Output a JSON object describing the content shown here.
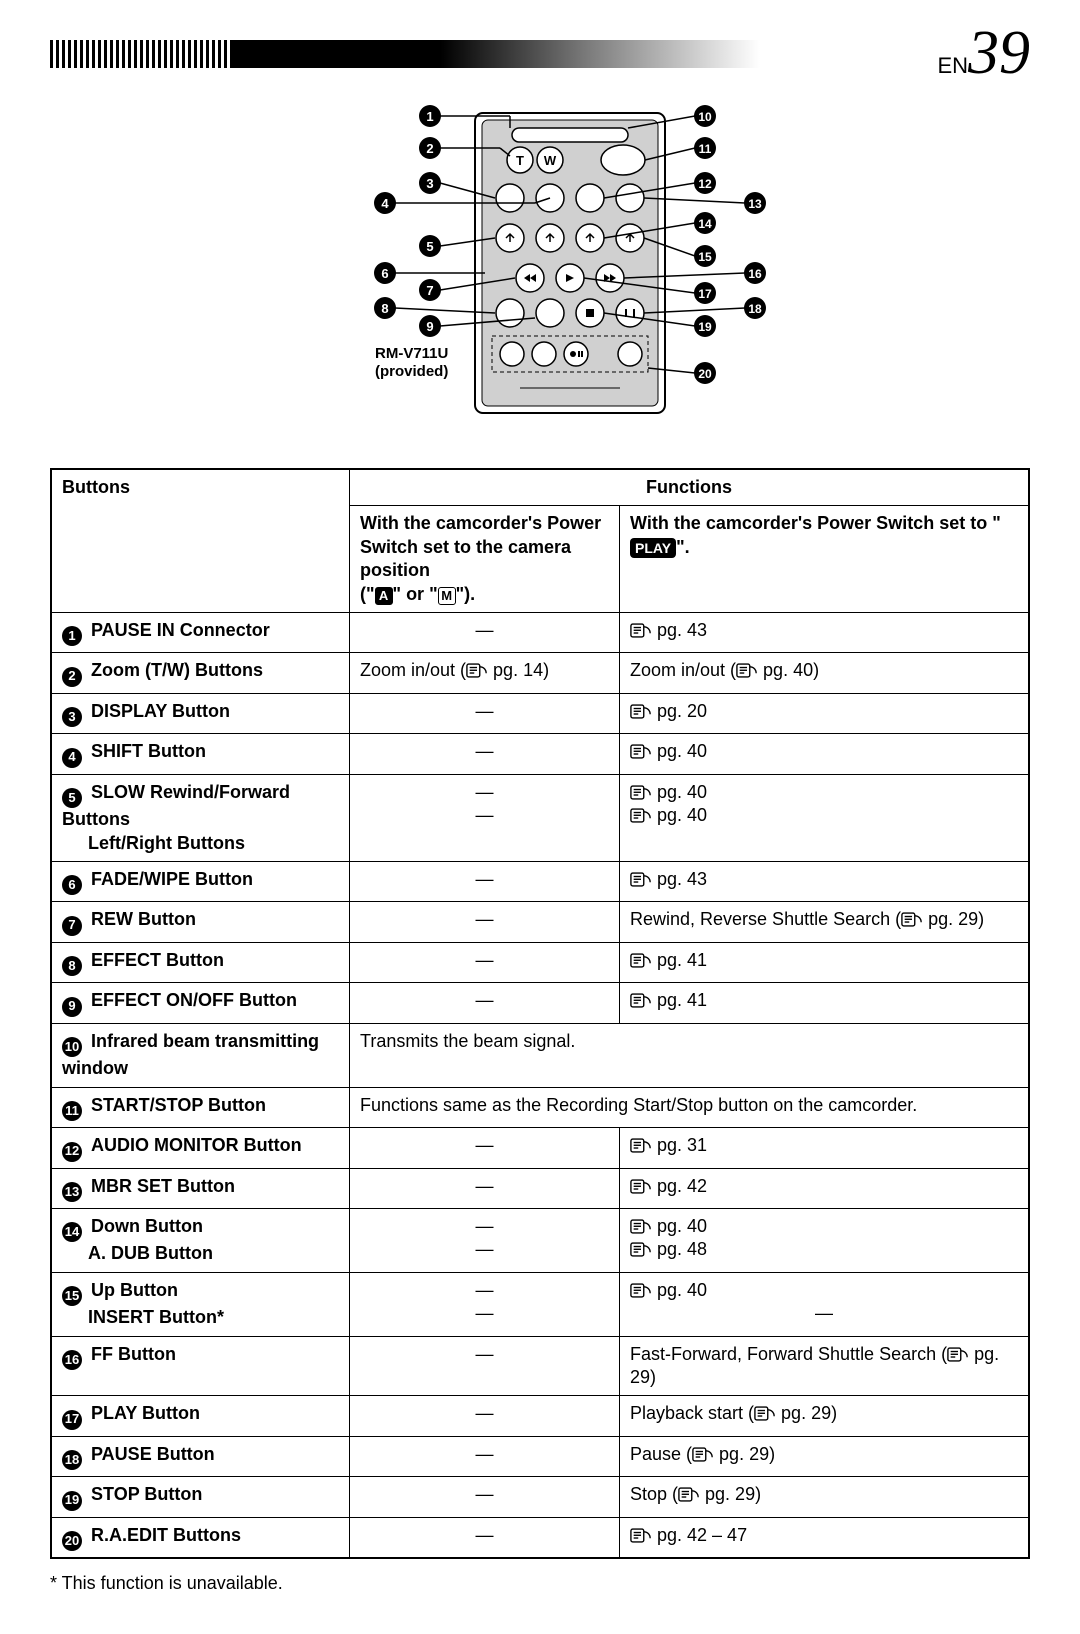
{
  "header": {
    "lang": "EN",
    "page_number": "39"
  },
  "remote": {
    "label_line1": "RM-V711U",
    "label_line2": "(provided)",
    "callouts_left": [
      "1",
      "2",
      "3",
      "4",
      "5",
      "6",
      "7",
      "8",
      "9"
    ],
    "callouts_right": [
      "10",
      "11",
      "12",
      "13",
      "14",
      "15",
      "16",
      "17",
      "18",
      "19",
      "20"
    ]
  },
  "table": {
    "head": {
      "buttons": "Buttons",
      "functions": "Functions",
      "camera": "With the camcorder's Power Switch set to the camera position",
      "camera_suffix_open": "(\"",
      "camera_suffix_mid": "\" or \"",
      "camera_suffix_close": "\").",
      "play_prefix": "With the camcorder's Power Switch set to \"",
      "play_tag": "PLAY",
      "play_suffix": "\"."
    },
    "rows": [
      {
        "num": "1",
        "label": "PAUSE IN Connector",
        "cam": "—",
        "play_pg": "pg. 43"
      },
      {
        "num": "2",
        "label": "Zoom (T/W) Buttons",
        "cam_text": "Zoom in/out (",
        "cam_pg": "pg. 14",
        "cam_close": ")",
        "play_text": "Zoom in/out (",
        "play_pg": "pg. 40",
        "play_close": ")"
      },
      {
        "num": "3",
        "label": "DISPLAY Button",
        "cam": "—",
        "play_pg": "pg. 20"
      },
      {
        "num": "4",
        "label": "SHIFT Button",
        "cam": "—",
        "play_pg": "pg. 40"
      },
      {
        "num": "5",
        "label": "SLOW Rewind/Forward Buttons",
        "label2": "Left/Right Buttons",
        "cam": "—",
        "play_pg": "pg. 40",
        "play_pg2": "pg. 40"
      },
      {
        "num": "6",
        "label": "FADE/WIPE Button",
        "cam": "—",
        "play_pg": "pg. 43"
      },
      {
        "num": "7",
        "label": "REW Button",
        "cam": "—",
        "play_text": "Rewind, Reverse Shuttle Search (",
        "play_pg": "pg. 29",
        "play_close": ")"
      },
      {
        "num": "8",
        "label": "EFFECT Button",
        "cam": "—",
        "play_pg": "pg. 41"
      },
      {
        "num": "9",
        "label": "EFFECT ON/OFF Button",
        "cam": "—",
        "play_pg": "pg. 41"
      },
      {
        "num": "10",
        "label": "Infrared beam transmitting window",
        "merged_text": "Transmits the beam signal."
      },
      {
        "num": "11",
        "label": "START/STOP Button",
        "merged_text": "Functions same as the Recording Start/Stop button on the camcorder."
      },
      {
        "num": "12",
        "label": "AUDIO MONITOR Button",
        "cam": "—",
        "play_pg": "pg. 31"
      },
      {
        "num": "13",
        "label": "MBR SET Button",
        "cam": "—",
        "play_pg": "pg. 42"
      },
      {
        "num": "14",
        "label": "Down Button",
        "label2": "A. DUB Button",
        "cam": "—",
        "play_pg": "pg. 40",
        "play_pg2": "pg. 48"
      },
      {
        "num": "15",
        "label": "Up Button",
        "label2": "INSERT Button*",
        "cam": "—",
        "play_pg": "pg. 40",
        "play2_plain": "—"
      },
      {
        "num": "16",
        "label": "FF Button",
        "cam": "—",
        "play_text": "Fast-Forward, Forward Shuttle Search (",
        "play_pg": "pg. 29",
        "play_close": ")"
      },
      {
        "num": "17",
        "label": "PLAY Button",
        "cam": "—",
        "play_text": "Playback start (",
        "play_pg": "pg. 29",
        "play_close": ")"
      },
      {
        "num": "18",
        "label": "PAUSE Button",
        "cam": "—",
        "play_text": "Pause (",
        "play_pg": "pg. 29",
        "play_close": ")"
      },
      {
        "num": "19",
        "label": "STOP Button",
        "cam": "—",
        "play_text": "Stop (",
        "play_pg": "pg. 29",
        "play_close": ")"
      },
      {
        "num": "20",
        "label": "R.A.EDIT Buttons",
        "cam": "—",
        "play_pg": "pg. 42 – 47"
      }
    ]
  },
  "footnote": "* This function is unavailable.",
  "colors": {
    "bg": "#ffffff",
    "fg": "#000000",
    "body_fill": "#d0d0d0"
  }
}
